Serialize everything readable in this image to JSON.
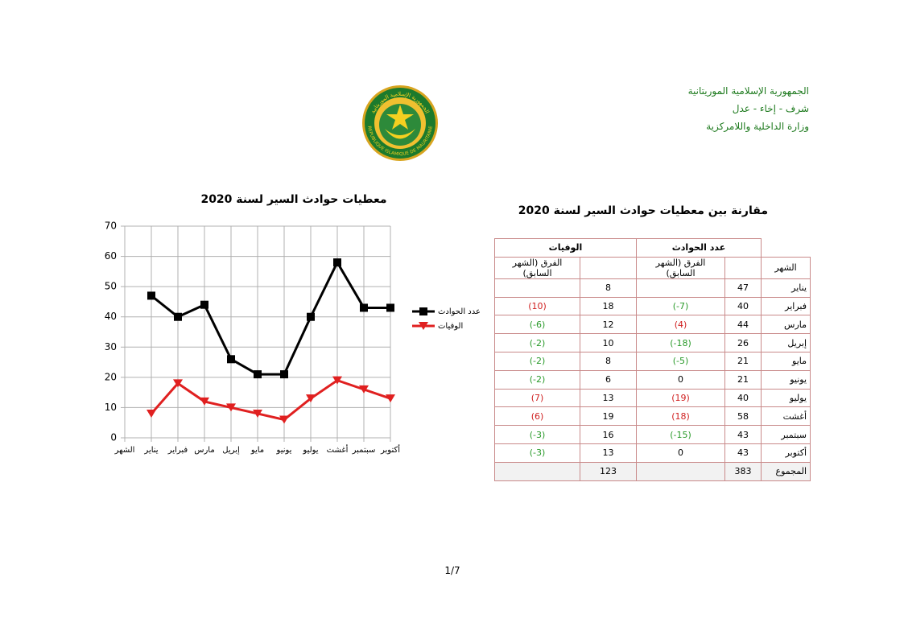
{
  "header": {
    "lines": [
      "الجمهورية الإسلامية الموريتانية",
      "شرف - إخاء - عدل",
      "وزارة الداخلية واللامركزية"
    ]
  },
  "emblem": {
    "text_ar": "الجمهورية الإسلامية الموريتانية",
    "text_fr": "REPUBLIQUE ISLAMIQUE DE MAURITANIE"
  },
  "chart_data": {
    "type": "line",
    "title": "معطيات حوادث السير لسنة 2020",
    "categories": [
      "الشهر",
      "يناير",
      "فبراير",
      "مارس",
      "إبريل",
      "مايو",
      "يونيو",
      "يوليو",
      "أغشت",
      "سبتمبر",
      "أكتوبر"
    ],
    "series": [
      {
        "name": "عدد الحوادث",
        "color": "#000000",
        "marker": "square",
        "values": [
          null,
          47,
          40,
          44,
          26,
          21,
          21,
          40,
          58,
          43,
          43
        ]
      },
      {
        "name": "الوفيات",
        "color": "#e02020",
        "marker": "triangle-down",
        "values": [
          null,
          8,
          18,
          12,
          10,
          8,
          6,
          13,
          19,
          16,
          13
        ]
      }
    ],
    "ylim": [
      0,
      70
    ],
    "yticks": [
      0,
      10,
      20,
      30,
      40,
      50,
      60,
      70
    ],
    "grid": true,
    "legend": "right"
  },
  "table": {
    "title": "مقارنة بين معطيات حوادث السير لسنة 2020",
    "groups": [
      "عدد الحوادث",
      "الوفيات"
    ],
    "columns": [
      "الشهر",
      null,
      "الفرق (الشهر السابق)",
      null,
      "الفرق (الشهر السابق)"
    ],
    "rows": [
      [
        "يناير",
        47,
        null,
        8,
        null
      ],
      [
        "فبراير",
        40,
        "(-7)",
        18,
        "(10)"
      ],
      [
        "مارس",
        44,
        "(4)",
        12,
        "(-6)"
      ],
      [
        "إبريل",
        26,
        "(-18)",
        10,
        "(-2)"
      ],
      [
        "مايو",
        21,
        "(-5)",
        8,
        "(-2)"
      ],
      [
        "يونيو",
        21,
        0,
        6,
        "(-2)"
      ],
      [
        "يوليو",
        40,
        "(19)",
        13,
        "(7)"
      ],
      [
        "أغشت",
        58,
        "(18)",
        19,
        "(6)"
      ],
      [
        "سبتمبر",
        43,
        "(-15)",
        16,
        "(-3)"
      ],
      [
        "أكتوبر",
        43,
        0,
        13,
        "(-3)"
      ],
      [
        "المجموع",
        383,
        null,
        123,
        null
      ]
    ]
  },
  "footer": {
    "page": "1/7"
  }
}
